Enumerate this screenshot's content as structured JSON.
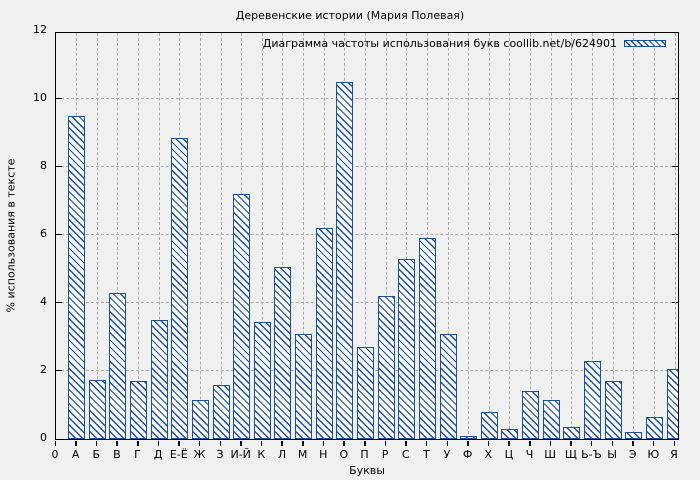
{
  "title": "Деревенские истории (Мария Полевая)",
  "legend": {
    "label": "Диаграмма частоты использования букв coollib.net/b/624901"
  },
  "axes": {
    "x_label": "Буквы",
    "y_label": "% использования в тексте",
    "x_origin_label": "0",
    "y_ticks": [
      0,
      2,
      4,
      6,
      8,
      10,
      12
    ]
  },
  "colors": {
    "background": "#f0f0f0",
    "bar_blue": "#1950a4",
    "grid_gray": "#a9a9a9",
    "border_black": "#000000"
  },
  "chart_data": {
    "type": "bar",
    "title": "Деревенские истории (Мария Полевая)",
    "xlabel": "Буквы",
    "ylabel": "% использования в тексте",
    "ylim": [
      0,
      12
    ],
    "grid": true,
    "legend_entry": "Диаграмма частоты использования букв coollib.net/b/624901",
    "legend_position": "top-right-inside",
    "bar_style": "blue diagonal hatch, hollow fill",
    "categories": [
      "А",
      "Б",
      "В",
      "Г",
      "Д",
      "Е-Ё",
      "Ж",
      "З",
      "И-Й",
      "К",
      "Л",
      "М",
      "Н",
      "О",
      "П",
      "Р",
      "С",
      "Т",
      "У",
      "Ф",
      "Х",
      "Ц",
      "Ч",
      "Ш",
      "Щ",
      "Ь-Ъ",
      "Ы",
      "Э",
      "Ю",
      "Я"
    ],
    "values": [
      9.5,
      1.75,
      4.3,
      1.7,
      3.5,
      8.85,
      1.15,
      1.6,
      7.2,
      3.45,
      5.05,
      3.1,
      6.2,
      10.5,
      2.7,
      4.2,
      5.3,
      5.9,
      3.1,
      0.1,
      0.8,
      0.3,
      1.4,
      1.15,
      0.35,
      2.3,
      1.7,
      0.2,
      0.65,
      2.05
    ]
  }
}
